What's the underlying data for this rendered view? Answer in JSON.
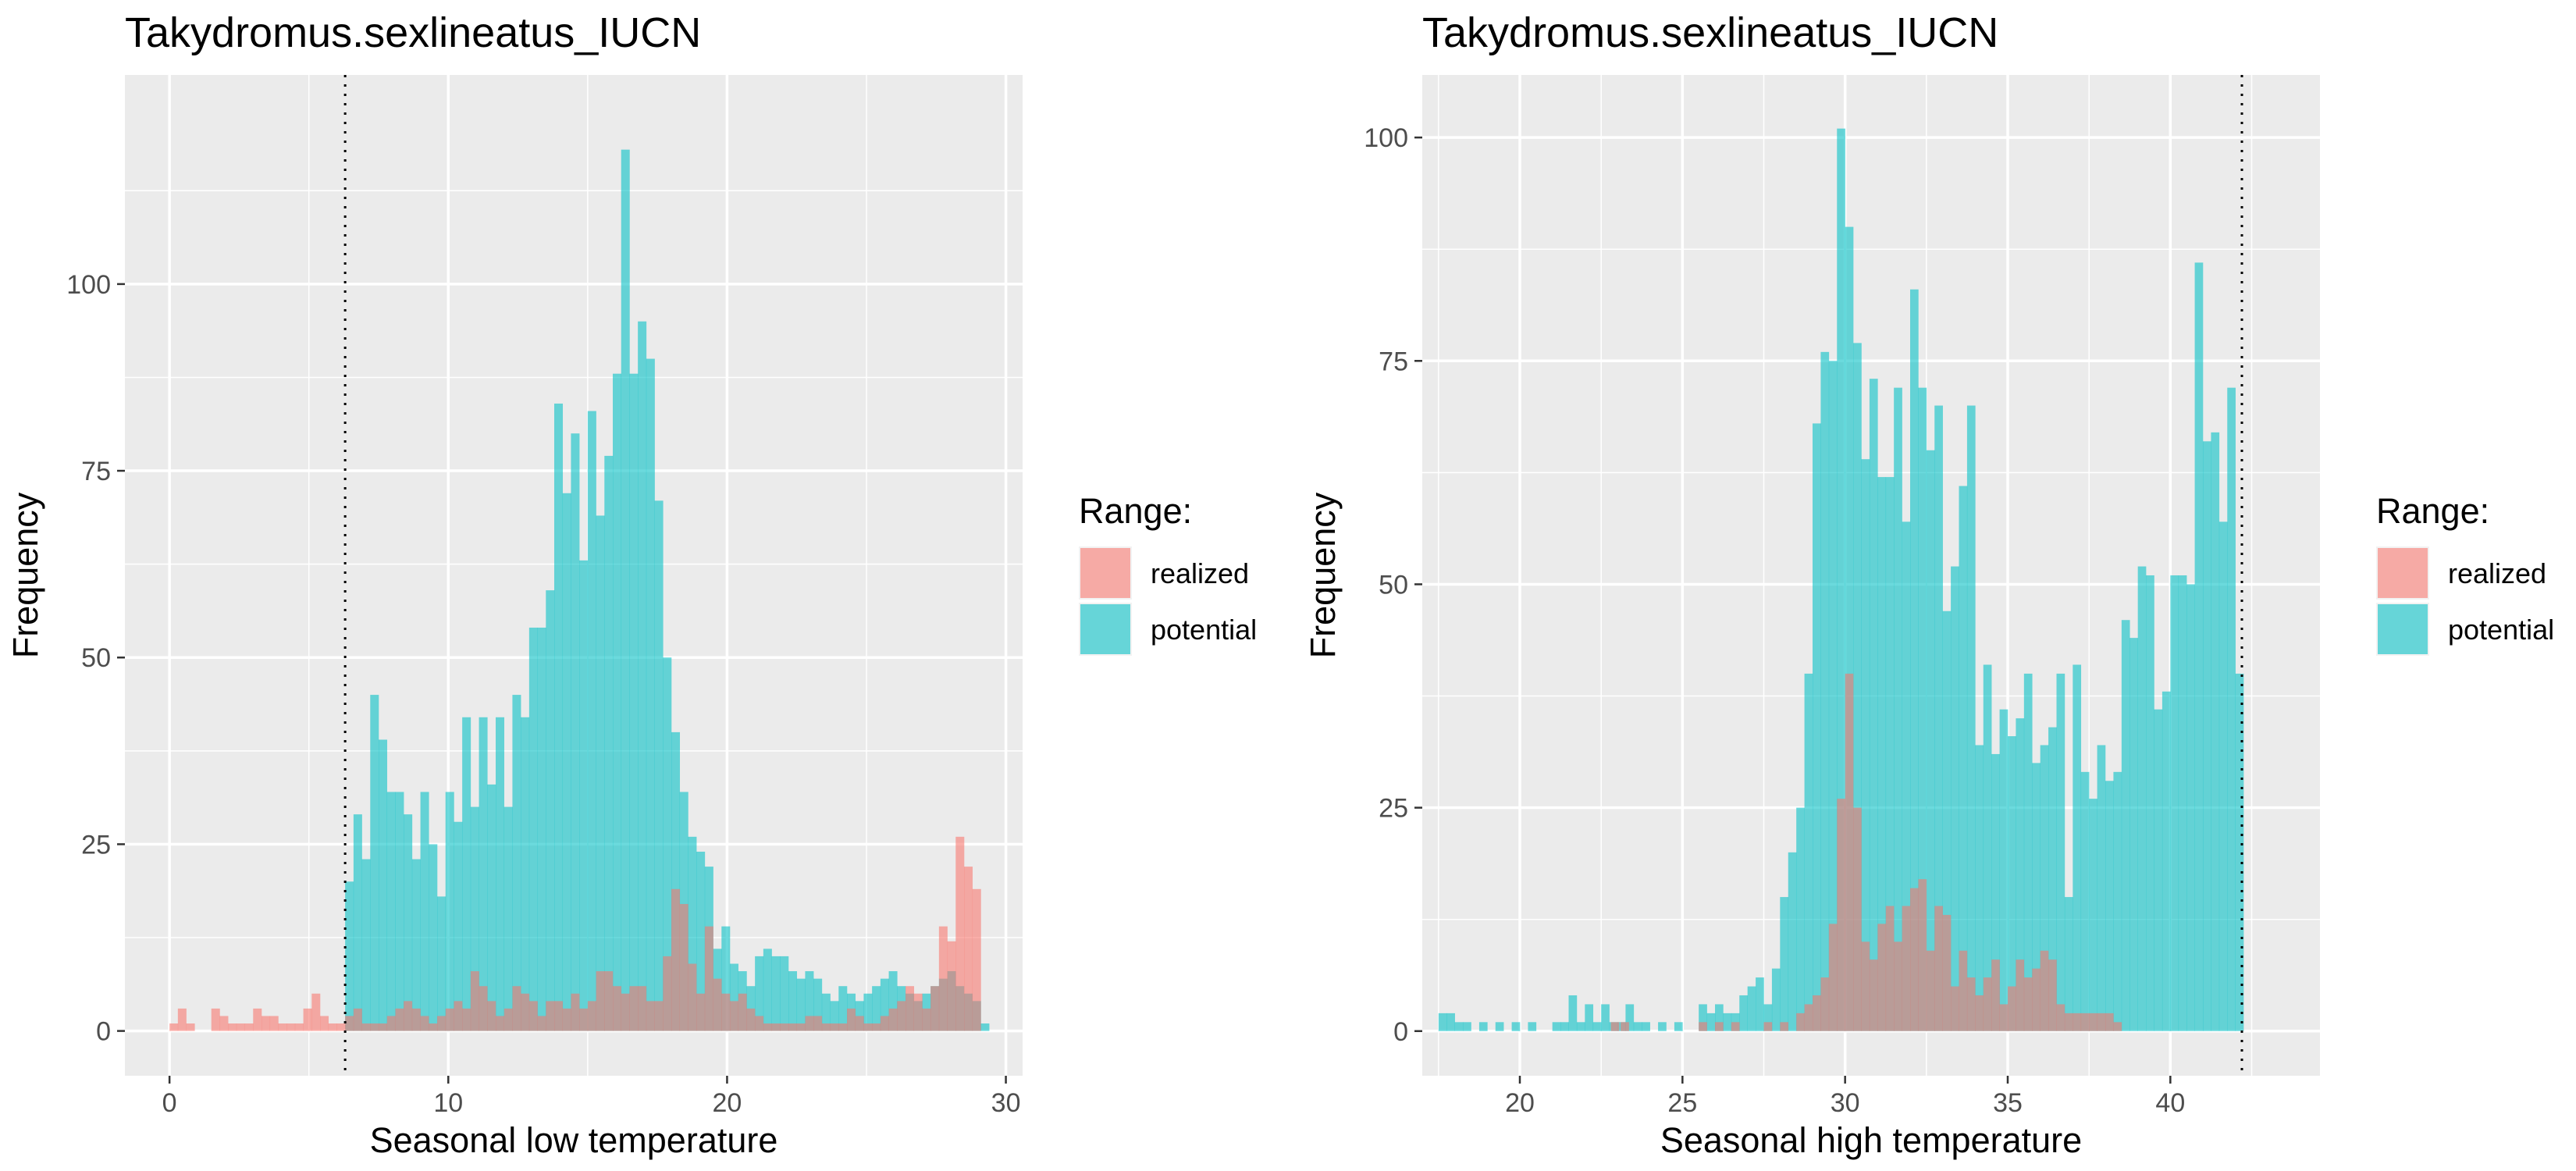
{
  "chart_data": [
    {
      "type": "histogram",
      "title": "Takydromus.sexlineatus_IUCN",
      "xlabel": "Seasonal low temperature",
      "ylabel": "Frequency",
      "xlim": [
        -1.6,
        30.6
      ],
      "ylim": [
        -6,
        128
      ],
      "xticks": [
        0,
        10,
        20,
        30
      ],
      "yticks": [
        0,
        25,
        50,
        75,
        100
      ],
      "grid": true,
      "vline": 6.3,
      "bin_width": 0.3,
      "legend": {
        "title": "Range:",
        "position": "right",
        "entries": [
          "realized",
          "potential"
        ]
      },
      "series": [
        {
          "name": "realized",
          "color": "#F8766D",
          "x": [
            0.0,
            0.3,
            0.6,
            1.5,
            1.8,
            2.1,
            2.4,
            2.7,
            3.0,
            3.3,
            3.6,
            3.9,
            4.2,
            4.5,
            4.8,
            5.1,
            5.4,
            5.7,
            6.0,
            6.3,
            6.6,
            6.9,
            7.2,
            7.5,
            7.8,
            8.1,
            8.4,
            8.7,
            9.0,
            9.3,
            9.6,
            9.9,
            10.2,
            10.5,
            10.8,
            11.1,
            11.4,
            11.7,
            12.0,
            12.3,
            12.6,
            12.9,
            13.2,
            13.5,
            13.8,
            14.1,
            14.4,
            14.7,
            15.0,
            15.3,
            15.6,
            15.9,
            16.2,
            16.5,
            16.8,
            17.1,
            17.4,
            17.7,
            18.0,
            18.3,
            18.6,
            18.9,
            19.2,
            19.5,
            19.8,
            20.1,
            20.4,
            20.7,
            21.0,
            21.3,
            21.6,
            21.9,
            22.2,
            22.5,
            22.8,
            23.1,
            23.4,
            23.7,
            24.0,
            24.3,
            24.6,
            24.9,
            25.2,
            25.5,
            25.8,
            26.1,
            26.4,
            26.7,
            27.0,
            27.3,
            27.6,
            27.9,
            28.2,
            28.5,
            28.8
          ],
          "y": [
            1,
            3,
            1,
            3,
            2,
            1,
            1,
            1,
            3,
            2,
            2,
            1,
            1,
            1,
            3,
            5,
            2,
            1,
            1,
            2,
            3,
            1,
            1,
            1,
            2,
            3,
            4,
            3,
            2,
            1,
            2,
            3,
            4,
            3,
            8,
            6,
            4,
            2,
            3,
            6,
            5,
            4,
            2,
            4,
            4,
            3,
            5,
            3,
            4,
            8,
            8,
            6,
            5,
            6,
            6,
            4,
            4,
            10,
            19,
            17,
            9,
            5,
            14,
            7,
            5,
            4,
            5,
            3,
            2,
            1,
            1,
            1,
            1,
            1,
            2,
            2,
            1,
            1,
            1,
            3,
            2,
            1,
            1,
            2,
            3,
            4,
            6,
            5,
            3,
            6,
            14,
            12,
            26,
            22,
            19
          ]
        },
        {
          "name": "potential",
          "color": "#00BFC4",
          "x": [
            6.3,
            6.6,
            6.9,
            7.2,
            7.5,
            7.8,
            8.1,
            8.4,
            8.7,
            9.0,
            9.3,
            9.6,
            9.9,
            10.2,
            10.5,
            10.8,
            11.1,
            11.4,
            11.7,
            12.0,
            12.3,
            12.6,
            12.9,
            13.2,
            13.5,
            13.8,
            14.1,
            14.4,
            14.7,
            15.0,
            15.3,
            15.6,
            15.9,
            16.2,
            16.5,
            16.8,
            17.1,
            17.4,
            17.7,
            18.0,
            18.3,
            18.6,
            18.9,
            19.2,
            19.5,
            19.8,
            20.1,
            20.4,
            20.7,
            21.0,
            21.3,
            21.6,
            21.9,
            22.2,
            22.5,
            22.8,
            23.1,
            23.4,
            23.7,
            24.0,
            24.3,
            24.6,
            24.9,
            25.2,
            25.5,
            25.8,
            26.1,
            26.4,
            26.7,
            27.0,
            27.3,
            27.6,
            27.9,
            28.2,
            28.5,
            28.8,
            29.1
          ],
          "y": [
            20,
            29,
            23,
            45,
            39,
            32,
            32,
            29,
            23,
            32,
            25,
            18,
            32,
            28,
            42,
            30,
            42,
            33,
            42,
            30,
            45,
            42,
            54,
            54,
            59,
            84,
            72,
            80,
            63,
            83,
            69,
            77,
            88,
            118,
            88,
            95,
            90,
            71,
            50,
            40,
            32,
            26,
            24,
            22,
            11,
            14,
            9,
            8,
            6,
            10,
            11,
            10,
            10,
            8,
            7,
            8,
            7,
            5,
            4,
            6,
            5,
            4,
            5,
            6,
            7,
            8,
            6,
            5,
            4,
            5,
            6,
            7,
            8,
            6,
            5,
            4,
            1
          ]
        }
      ]
    },
    {
      "type": "histogram",
      "title": "Takydromus.sexlineatus_IUCN",
      "xlabel": "Seasonal high temperature",
      "ylabel": "Frequency",
      "xlim": [
        17.0,
        44.6
      ],
      "ylim": [
        -5,
        107
      ],
      "xticks": [
        20,
        25,
        30,
        35,
        40
      ],
      "yticks": [
        0,
        25,
        50,
        75,
        100
      ],
      "grid": true,
      "vline": 42.2,
      "bin_width": 0.25,
      "legend": {
        "title": "Range:",
        "position": "right",
        "entries": [
          "realized",
          "potential"
        ]
      },
      "series": [
        {
          "name": "realized",
          "color": "#F8766D",
          "x": [
            22.8,
            23.1,
            25.5,
            26.0,
            26.5,
            27.5,
            28.0,
            28.5,
            28.75,
            29.0,
            29.25,
            29.5,
            29.75,
            30.0,
            30.25,
            30.5,
            30.75,
            31.0,
            31.25,
            31.5,
            31.75,
            32.0,
            32.25,
            32.5,
            32.75,
            33.0,
            33.25,
            33.5,
            33.75,
            34.0,
            34.25,
            34.5,
            34.75,
            35.0,
            35.25,
            35.5,
            35.75,
            36.0,
            36.25,
            36.5,
            36.75,
            37.0,
            37.25,
            37.5,
            37.75,
            38.0,
            38.25
          ],
          "y": [
            1,
            1,
            1,
            1,
            1,
            1,
            1,
            2,
            3,
            4,
            6,
            12,
            26,
            40,
            25,
            10,
            8,
            12,
            14,
            10,
            14,
            16,
            17,
            9,
            14,
            13,
            5,
            9,
            6,
            4,
            6,
            8,
            3,
            5,
            8,
            6,
            7,
            9,
            8,
            3,
            2,
            2,
            2,
            2,
            2,
            2,
            1
          ]
        },
        {
          "name": "potential",
          "color": "#00BFC4",
          "x": [
            17.5,
            17.75,
            18.0,
            18.25,
            18.75,
            19.25,
            19.75,
            20.25,
            21.0,
            21.25,
            21.5,
            21.75,
            22.0,
            22.25,
            22.5,
            22.75,
            23.0,
            23.25,
            23.5,
            23.75,
            24.25,
            24.75,
            25.5,
            25.75,
            26.0,
            26.25,
            26.5,
            26.75,
            27.0,
            27.25,
            27.5,
            27.75,
            28.0,
            28.25,
            28.5,
            28.75,
            29.0,
            29.25,
            29.5,
            29.75,
            30.0,
            30.25,
            30.5,
            30.75,
            31.0,
            31.25,
            31.5,
            31.75,
            32.0,
            32.25,
            32.5,
            32.75,
            33.0,
            33.25,
            33.5,
            33.75,
            34.0,
            34.25,
            34.5,
            34.75,
            35.0,
            35.25,
            35.5,
            35.75,
            36.0,
            36.25,
            36.5,
            36.75,
            37.0,
            37.25,
            37.5,
            37.75,
            38.0,
            38.25,
            38.5,
            38.75,
            39.0,
            39.25,
            39.5,
            39.75,
            40.0,
            40.25,
            40.5,
            40.75,
            41.0,
            41.25,
            41.5,
            41.75,
            42.0
          ],
          "y": [
            2,
            2,
            1,
            1,
            1,
            1,
            1,
            1,
            1,
            1,
            4,
            1,
            3,
            1,
            3,
            1,
            1,
            3,
            1,
            1,
            1,
            1,
            3,
            2,
            3,
            2,
            2,
            4,
            5,
            6,
            3,
            7,
            15,
            20,
            25,
            40,
            68,
            76,
            75,
            101,
            90,
            77,
            64,
            73,
            62,
            62,
            72,
            57,
            83,
            72,
            65,
            70,
            47,
            52,
            61,
            70,
            32,
            41,
            31,
            36,
            33,
            35,
            40,
            30,
            32,
            34,
            40,
            15,
            41,
            29,
            26,
            32,
            28,
            29,
            46,
            44,
            52,
            51,
            36,
            38,
            51,
            51,
            50,
            86,
            66,
            67,
            57,
            72,
            40
          ]
        }
      ]
    }
  ]
}
